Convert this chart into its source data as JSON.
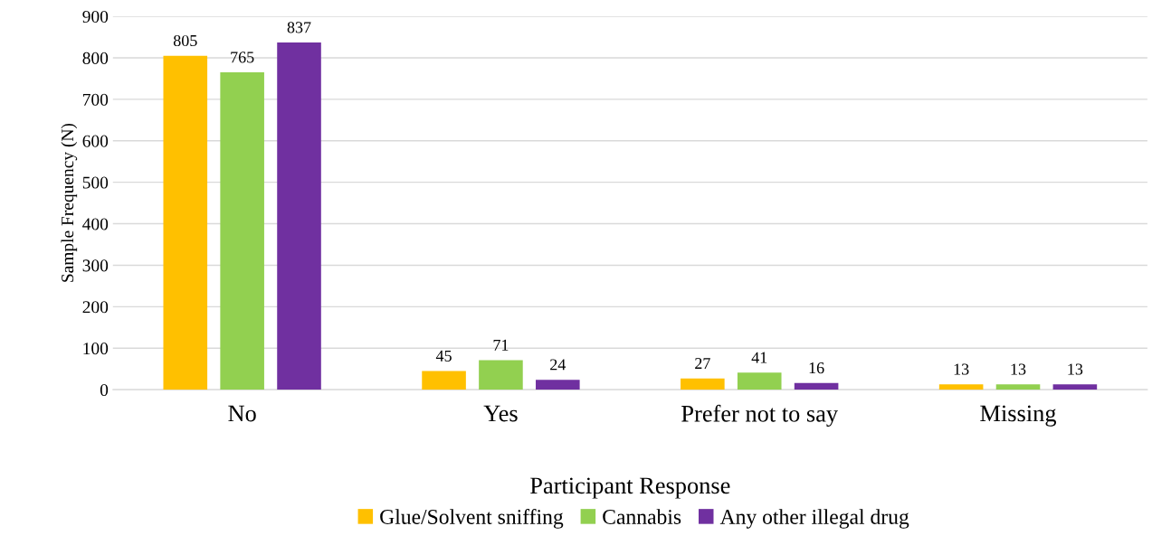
{
  "chart_data": {
    "type": "bar",
    "xlabel": "Participant Response",
    "ylabel": "Sample Frequency (N)",
    "categories": [
      "No",
      "Yes",
      "Prefer not to say",
      "Missing"
    ],
    "series": [
      {
        "name": "Glue/Solvent sniffing",
        "color": "#ffc000",
        "values": [
          805,
          45,
          27,
          13
        ]
      },
      {
        "name": "Cannabis",
        "color": "#92d050",
        "values": [
          765,
          71,
          41,
          13
        ]
      },
      {
        "name": "Any other illegal drug",
        "color": "#7030a0",
        "values": [
          837,
          24,
          16,
          13
        ]
      }
    ],
    "ylim": [
      0,
      900
    ],
    "yticks": [
      0,
      100,
      200,
      300,
      400,
      500,
      600,
      700,
      800,
      900
    ],
    "grid": "y",
    "legend": "bottom",
    "data_labels": true
  }
}
